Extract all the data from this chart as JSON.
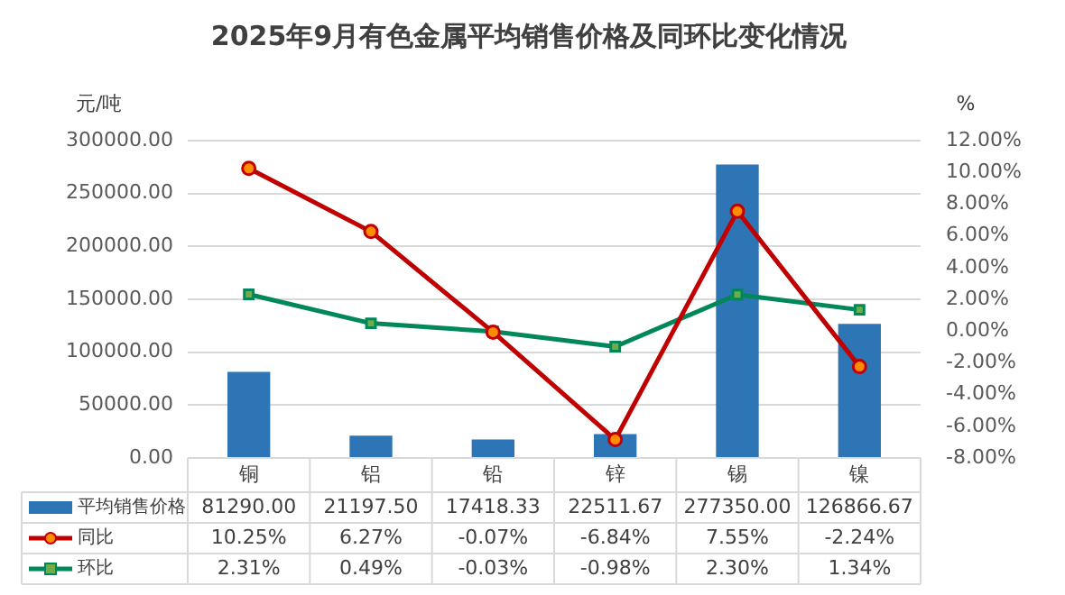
{
  "chart_data": {
    "type": "bar",
    "title": "2025年9月有色金属平均销售价格及同环比变化情况",
    "ylabel": "元/吨",
    "y2label": "%",
    "categories": [
      "铜",
      "铝",
      "铅",
      "锌",
      "锡",
      "镍"
    ],
    "series": [
      {
        "name": "平均销售价格",
        "color": "#2e75b6",
        "values": [
          81290.0,
          21197.5,
          17418.33,
          22511.67,
          277350.0,
          126866.67
        ],
        "value_labels": [
          "81290.00",
          "21197.50",
          "17418.33",
          "22511.67",
          "277350.00",
          "126866.67"
        ]
      },
      {
        "name": "同比",
        "type": "line",
        "axis": "y2",
        "color": "#c00000",
        "marker": "circle",
        "values": [
          10.25,
          6.27,
          -0.07,
          -6.84,
          7.55,
          -2.24
        ],
        "value_labels": [
          "10.25%",
          "6.27%",
          "-0.07%",
          "-6.84%",
          "7.55%",
          "-2.24%"
        ]
      },
      {
        "name": "环比",
        "type": "line",
        "axis": "y2",
        "color": "#00875a",
        "marker": "square",
        "values": [
          2.31,
          0.49,
          -0.03,
          -0.98,
          2.3,
          1.34
        ],
        "value_labels": [
          "2.31%",
          "0.49%",
          "-0.03%",
          "-0.98%",
          "2.30%",
          "1.34%"
        ]
      }
    ],
    "ylim": [
      0,
      300000
    ],
    "yticks": [
      {
        "value": 0,
        "label": "0.00"
      },
      {
        "value": 50000,
        "label": "50000.00"
      },
      {
        "value": 100000,
        "label": "100000.00"
      },
      {
        "value": 150000,
        "label": "150000.00"
      },
      {
        "value": 200000,
        "label": "200000.00"
      },
      {
        "value": 250000,
        "label": "250000.00"
      },
      {
        "value": 300000,
        "label": "300000.00"
      }
    ],
    "y2lim": [
      -8,
      12
    ],
    "y2ticks": [
      {
        "value": -8,
        "label": "-8.00%"
      },
      {
        "value": -6,
        "label": "-6.00%"
      },
      {
        "value": -4,
        "label": "-4.00%"
      },
      {
        "value": -2,
        "label": "-2.00%"
      },
      {
        "value": 0,
        "label": "0.00%"
      },
      {
        "value": 2,
        "label": "2.00%"
      },
      {
        "value": 4,
        "label": "4.00%"
      },
      {
        "value": 6,
        "label": "6.00%"
      },
      {
        "value": 8,
        "label": "8.00%"
      },
      {
        "value": 10,
        "label": "10.00%"
      },
      {
        "value": 12,
        "label": "12.00%"
      }
    ],
    "grid": "y",
    "legend": "bottom"
  }
}
